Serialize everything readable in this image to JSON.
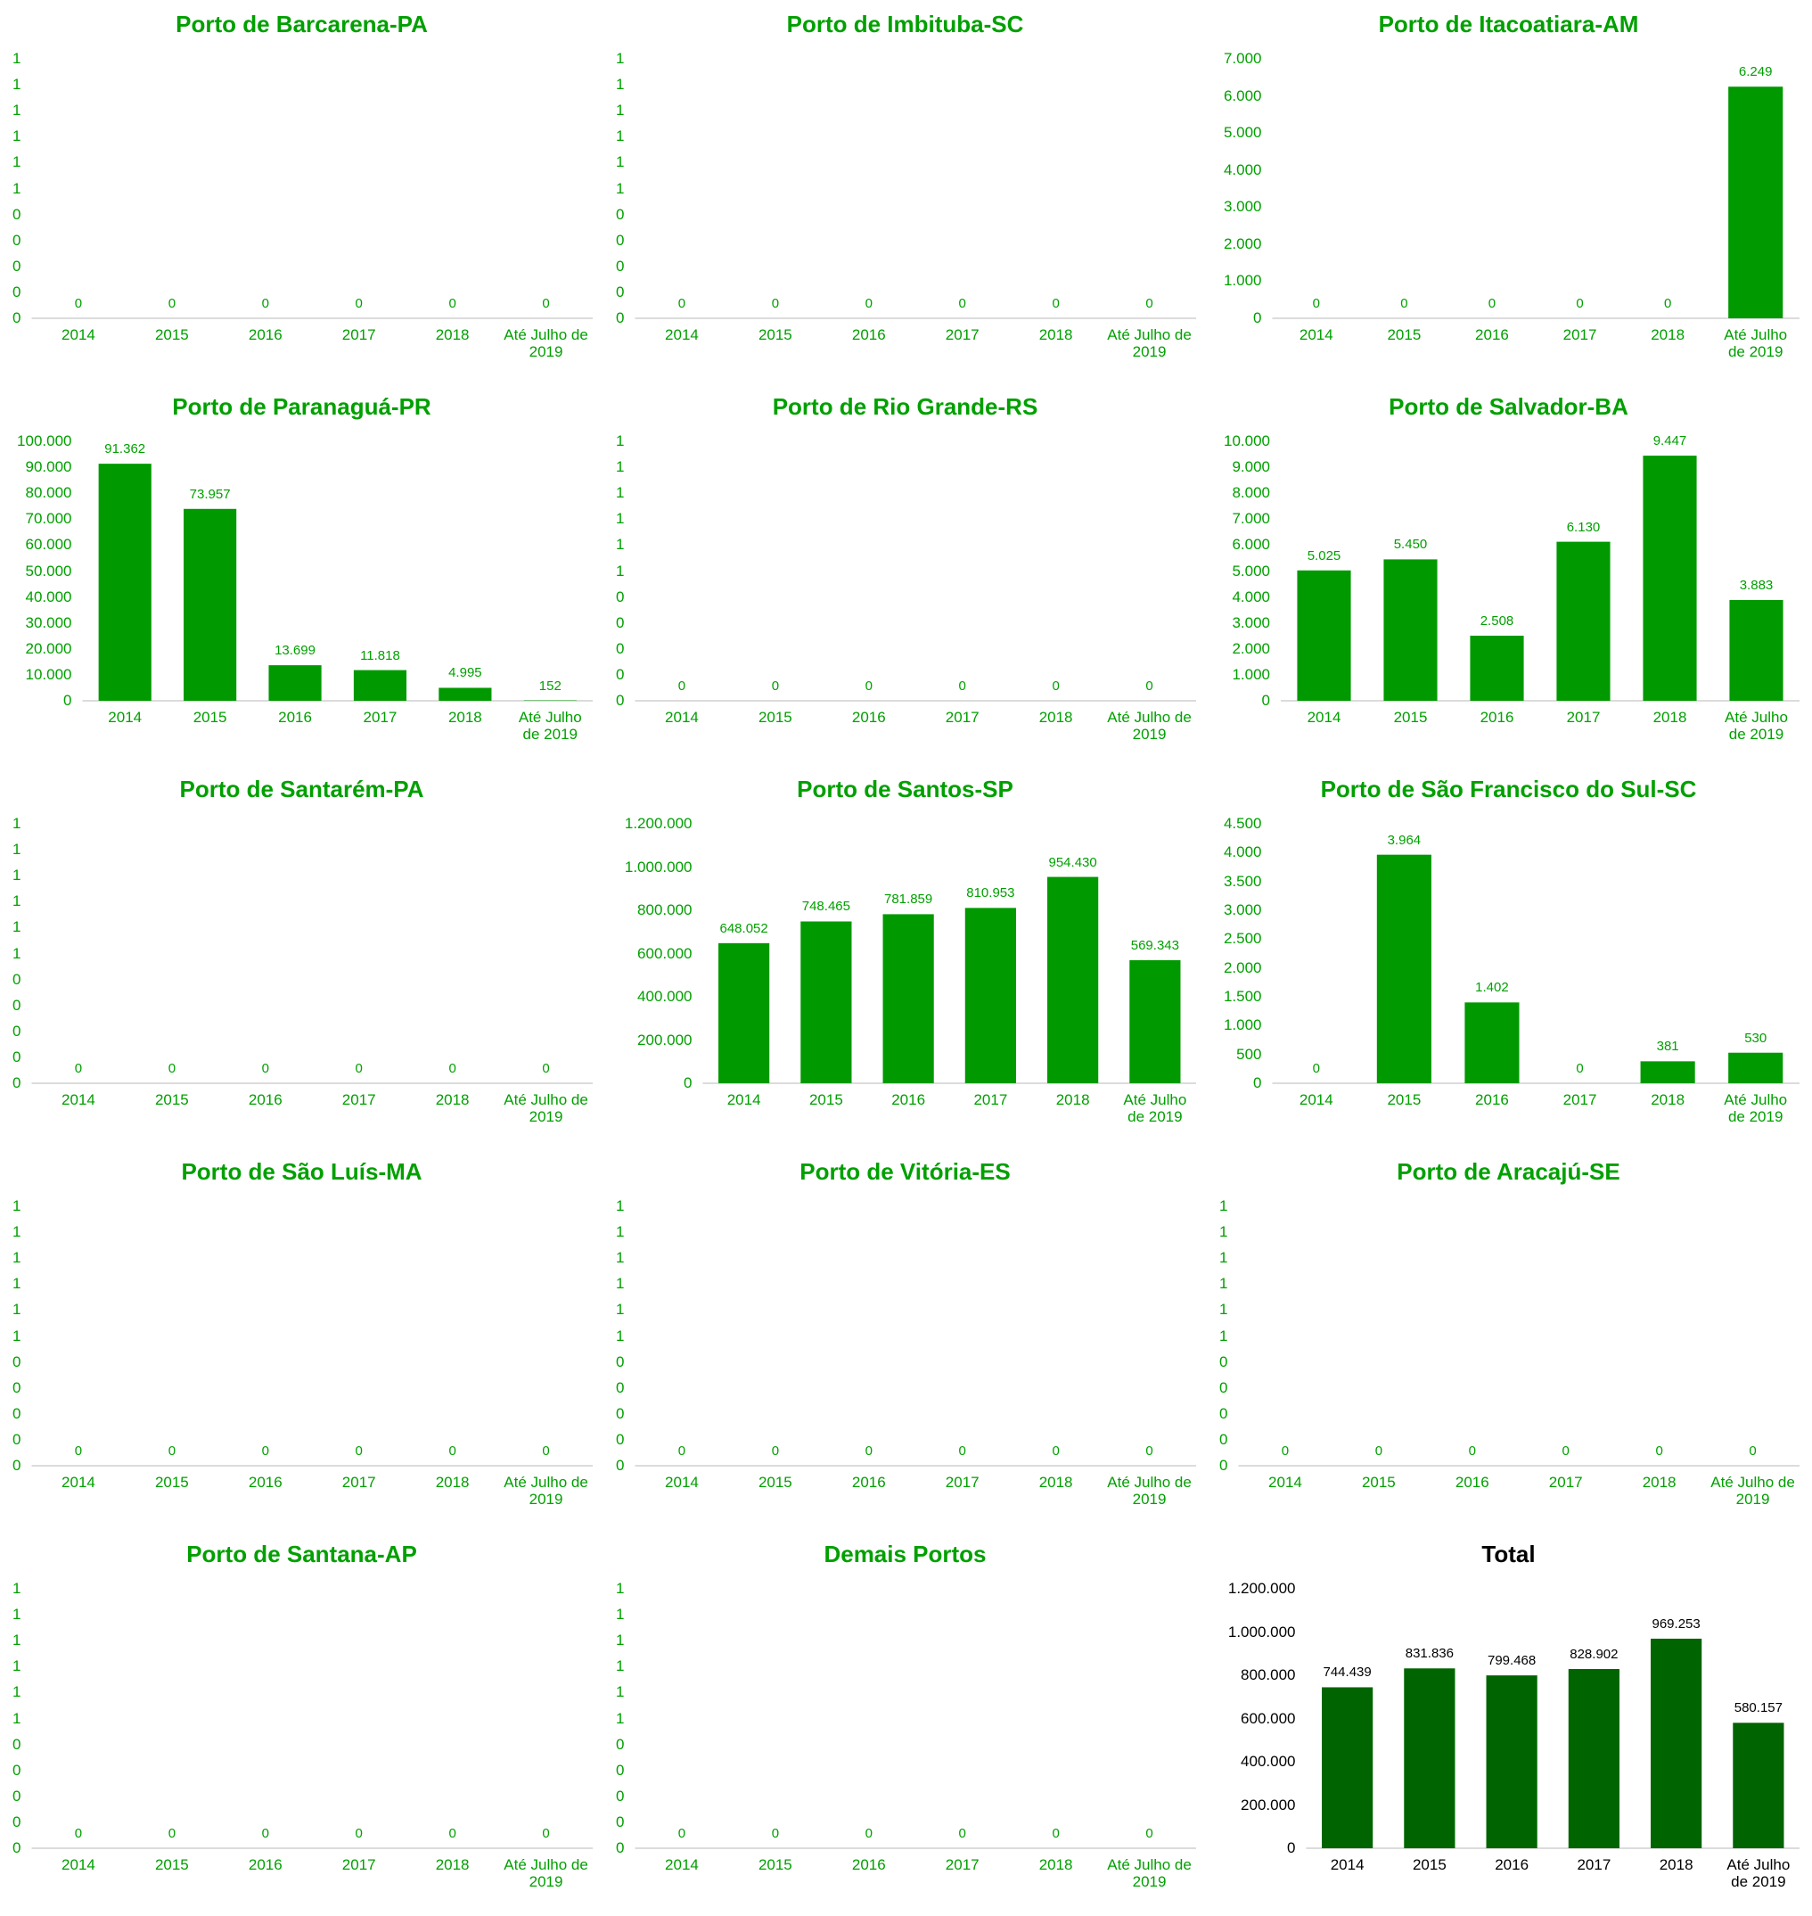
{
  "chart_data": [
    {
      "type": "bar",
      "title": "Porto de Barcarena-PA",
      "color": "#009900",
      "text_color": "#00a000",
      "categories": [
        "2014",
        "2015",
        "2016",
        "2017",
        "2018",
        "Até Julho de 2019"
      ],
      "values": [
        0,
        0,
        0,
        0,
        0,
        0
      ],
      "ylim": [
        0,
        1
      ],
      "yticks": [
        0,
        {
          "value": 0.1,
          "label": "0"
        },
        {
          "value": 0.2,
          "label": "0"
        },
        {
          "value": 0.3,
          "label": "0"
        },
        {
          "value": 0.4,
          "label": "0"
        },
        {
          "value": 0.5,
          "label": "1"
        },
        {
          "value": 0.6,
          "label": "1"
        },
        {
          "value": 0.7,
          "label": "1"
        },
        {
          "value": 0.8,
          "label": "1"
        },
        {
          "value": 0.9,
          "label": "1"
        },
        1
      ],
      "grid": false
    },
    {
      "type": "bar",
      "title": "Porto de Imbituba-SC",
      "color": "#009900",
      "text_color": "#00a000",
      "categories": [
        "2014",
        "2015",
        "2016",
        "2017",
        "2018",
        "Até Julho de 2019"
      ],
      "values": [
        0,
        0,
        0,
        0,
        0,
        0
      ],
      "ylim": [
        0,
        1
      ],
      "yticks": [
        0,
        {
          "value": 0.1,
          "label": "0"
        },
        {
          "value": 0.2,
          "label": "0"
        },
        {
          "value": 0.3,
          "label": "0"
        },
        {
          "value": 0.4,
          "label": "0"
        },
        {
          "value": 0.5,
          "label": "1"
        },
        {
          "value": 0.6,
          "label": "1"
        },
        {
          "value": 0.7,
          "label": "1"
        },
        {
          "value": 0.8,
          "label": "1"
        },
        {
          "value": 0.9,
          "label": "1"
        },
        1
      ],
      "grid": false
    },
    {
      "type": "bar",
      "title": "Porto de Itacoatiara-AM",
      "color": "#009900",
      "text_color": "#00a000",
      "categories": [
        "2014",
        "2015",
        "2016",
        "2017",
        "2018",
        "Até Julho de 2019"
      ],
      "values": [
        0,
        0,
        0,
        0,
        0,
        6249
      ],
      "value_labels": [
        "0",
        "0",
        "0",
        "0",
        "0",
        "6.249"
      ],
      "ylim": [
        0,
        7000
      ],
      "yticks": [
        0,
        {
          "value": 1000,
          "label": "1.000"
        },
        {
          "value": 2000,
          "label": "2.000"
        },
        {
          "value": 3000,
          "label": "3.000"
        },
        {
          "value": 4000,
          "label": "4.000"
        },
        {
          "value": 5000,
          "label": "5.000"
        },
        {
          "value": 6000,
          "label": "6.000"
        },
        {
          "value": 7000,
          "label": "7.000"
        }
      ],
      "grid": false
    },
    {
      "type": "bar",
      "title": "Porto de Paranaguá-PR",
      "color": "#009900",
      "text_color": "#00a000",
      "categories": [
        "2014",
        "2015",
        "2016",
        "2017",
        "2018",
        "Até Julho de 2019"
      ],
      "values": [
        91362,
        73957,
        13699,
        11818,
        4995,
        152
      ],
      "value_labels": [
        "91.362",
        "73.957",
        "13.699",
        "11.818",
        "4.995",
        "152"
      ],
      "ylim": [
        0,
        100000
      ],
      "yticks": [
        0,
        {
          "value": 10000,
          "label": "10.000"
        },
        {
          "value": 20000,
          "label": "20.000"
        },
        {
          "value": 30000,
          "label": "30.000"
        },
        {
          "value": 40000,
          "label": "40.000"
        },
        {
          "value": 50000,
          "label": "50.000"
        },
        {
          "value": 60000,
          "label": "60.000"
        },
        {
          "value": 70000,
          "label": "70.000"
        },
        {
          "value": 80000,
          "label": "80.000"
        },
        {
          "value": 90000,
          "label": "90.000"
        },
        {
          "value": 100000,
          "label": "100.000"
        }
      ],
      "grid": false
    },
    {
      "type": "bar",
      "title": "Porto de Rio Grande-RS",
      "color": "#009900",
      "text_color": "#00a000",
      "categories": [
        "2014",
        "2015",
        "2016",
        "2017",
        "2018",
        "Até Julho de 2019"
      ],
      "values": [
        0,
        0,
        0,
        0,
        0,
        0
      ],
      "ylim": [
        0,
        1
      ],
      "yticks": [
        0,
        {
          "value": 0.1,
          "label": "0"
        },
        {
          "value": 0.2,
          "label": "0"
        },
        {
          "value": 0.3,
          "label": "0"
        },
        {
          "value": 0.4,
          "label": "0"
        },
        {
          "value": 0.5,
          "label": "1"
        },
        {
          "value": 0.6,
          "label": "1"
        },
        {
          "value": 0.7,
          "label": "1"
        },
        {
          "value": 0.8,
          "label": "1"
        },
        {
          "value": 0.9,
          "label": "1"
        },
        1
      ],
      "grid": false
    },
    {
      "type": "bar",
      "title": "Porto de Salvador-BA",
      "color": "#009900",
      "text_color": "#00a000",
      "categories": [
        "2014",
        "2015",
        "2016",
        "2017",
        "2018",
        "Até Julho de 2019"
      ],
      "values": [
        5025,
        5450,
        2508,
        6130,
        9447,
        3883
      ],
      "value_labels": [
        "5.025",
        "5.450",
        "2.508",
        "6.130",
        "9.447",
        "3.883"
      ],
      "ylim": [
        0,
        10000
      ],
      "yticks": [
        0,
        {
          "value": 1000,
          "label": "1.000"
        },
        {
          "value": 2000,
          "label": "2.000"
        },
        {
          "value": 3000,
          "label": "3.000"
        },
        {
          "value": 4000,
          "label": "4.000"
        },
        {
          "value": 5000,
          "label": "5.000"
        },
        {
          "value": 6000,
          "label": "6.000"
        },
        {
          "value": 7000,
          "label": "7.000"
        },
        {
          "value": 8000,
          "label": "8.000"
        },
        {
          "value": 9000,
          "label": "9.000"
        },
        {
          "value": 10000,
          "label": "10.000"
        }
      ],
      "grid": false
    },
    {
      "type": "bar",
      "title": "Porto de Santarém-PA",
      "color": "#009900",
      "text_color": "#00a000",
      "categories": [
        "2014",
        "2015",
        "2016",
        "2017",
        "2018",
        "Até Julho de 2019"
      ],
      "values": [
        0,
        0,
        0,
        0,
        0,
        0
      ],
      "ylim": [
        0,
        1
      ],
      "yticks": [
        0,
        {
          "value": 0.1,
          "label": "0"
        },
        {
          "value": 0.2,
          "label": "0"
        },
        {
          "value": 0.3,
          "label": "0"
        },
        {
          "value": 0.4,
          "label": "0"
        },
        {
          "value": 0.5,
          "label": "1"
        },
        {
          "value": 0.6,
          "label": "1"
        },
        {
          "value": 0.7,
          "label": "1"
        },
        {
          "value": 0.8,
          "label": "1"
        },
        {
          "value": 0.9,
          "label": "1"
        },
        1
      ],
      "grid": false
    },
    {
      "type": "bar",
      "title": "Porto de Santos-SP",
      "color": "#009900",
      "text_color": "#00a000",
      "categories": [
        "2014",
        "2015",
        "2016",
        "2017",
        "2018",
        "Até Julho de 2019"
      ],
      "values": [
        648052,
        748465,
        781859,
        810953,
        954430,
        569343
      ],
      "value_labels": [
        "648.052",
        "748.465",
        "781.859",
        "810.953",
        "954.430",
        "569.343"
      ],
      "ylim": [
        0,
        1200000
      ],
      "yticks": [
        0,
        {
          "value": 200000,
          "label": "200.000"
        },
        {
          "value": 400000,
          "label": "400.000"
        },
        {
          "value": 600000,
          "label": "600.000"
        },
        {
          "value": 800000,
          "label": "800.000"
        },
        {
          "value": 1000000,
          "label": "1.000.000"
        },
        {
          "value": 1200000,
          "label": "1.200.000"
        }
      ],
      "grid": false
    },
    {
      "type": "bar",
      "title": "Porto de São Francisco do Sul-SC",
      "color": "#009900",
      "text_color": "#00a000",
      "categories": [
        "2014",
        "2015",
        "2016",
        "2017",
        "2018",
        "Até Julho de 2019"
      ],
      "values": [
        0,
        3964,
        1402,
        0,
        381,
        530
      ],
      "value_labels": [
        "0",
        "3.964",
        "1.402",
        "0",
        "381",
        "530"
      ],
      "ylim": [
        0,
        4500
      ],
      "yticks": [
        0,
        500,
        {
          "value": 1000,
          "label": "1.000"
        },
        {
          "value": 1500,
          "label": "1.500"
        },
        {
          "value": 2000,
          "label": "2.000"
        },
        {
          "value": 2500,
          "label": "2.500"
        },
        {
          "value": 3000,
          "label": "3.000"
        },
        {
          "value": 3500,
          "label": "3.500"
        },
        {
          "value": 4000,
          "label": "4.000"
        },
        {
          "value": 4500,
          "label": "4.500"
        }
      ],
      "grid": false
    },
    {
      "type": "bar",
      "title": "Porto de São Luís-MA",
      "color": "#009900",
      "text_color": "#00a000",
      "categories": [
        "2014",
        "2015",
        "2016",
        "2017",
        "2018",
        "Até Julho de 2019"
      ],
      "values": [
        0,
        0,
        0,
        0,
        0,
        0
      ],
      "ylim": [
        0,
        1
      ],
      "yticks": [
        0,
        {
          "value": 0.1,
          "label": "0"
        },
        {
          "value": 0.2,
          "label": "0"
        },
        {
          "value": 0.3,
          "label": "0"
        },
        {
          "value": 0.4,
          "label": "0"
        },
        {
          "value": 0.5,
          "label": "1"
        },
        {
          "value": 0.6,
          "label": "1"
        },
        {
          "value": 0.7,
          "label": "1"
        },
        {
          "value": 0.8,
          "label": "1"
        },
        {
          "value": 0.9,
          "label": "1"
        },
        1
      ],
      "grid": false
    },
    {
      "type": "bar",
      "title": "Porto de Vitória-ES",
      "color": "#009900",
      "text_color": "#00a000",
      "categories": [
        "2014",
        "2015",
        "2016",
        "2017",
        "2018",
        "Até Julho de 2019"
      ],
      "values": [
        0,
        0,
        0,
        0,
        0,
        0
      ],
      "ylim": [
        0,
        1
      ],
      "yticks": [
        0,
        {
          "value": 0.1,
          "label": "0"
        },
        {
          "value": 0.2,
          "label": "0"
        },
        {
          "value": 0.3,
          "label": "0"
        },
        {
          "value": 0.4,
          "label": "0"
        },
        {
          "value": 0.5,
          "label": "1"
        },
        {
          "value": 0.6,
          "label": "1"
        },
        {
          "value": 0.7,
          "label": "1"
        },
        {
          "value": 0.8,
          "label": "1"
        },
        {
          "value": 0.9,
          "label": "1"
        },
        1
      ],
      "grid": false
    },
    {
      "type": "bar",
      "title": "Porto de Aracajú-SE",
      "color": "#009900",
      "text_color": "#00a000",
      "categories": [
        "2014",
        "2015",
        "2016",
        "2017",
        "2018",
        "Até Julho de 2019"
      ],
      "values": [
        0,
        0,
        0,
        0,
        0,
        0
      ],
      "ylim": [
        0,
        1
      ],
      "yticks": [
        0,
        {
          "value": 0.1,
          "label": "0"
        },
        {
          "value": 0.2,
          "label": "0"
        },
        {
          "value": 0.3,
          "label": "0"
        },
        {
          "value": 0.4,
          "label": "0"
        },
        {
          "value": 0.5,
          "label": "1"
        },
        {
          "value": 0.6,
          "label": "1"
        },
        {
          "value": 0.7,
          "label": "1"
        },
        {
          "value": 0.8,
          "label": "1"
        },
        {
          "value": 0.9,
          "label": "1"
        },
        1
      ],
      "grid": false
    },
    {
      "type": "bar",
      "title": "Porto de Santana-AP",
      "color": "#009900",
      "text_color": "#00a000",
      "categories": [
        "2014",
        "2015",
        "2016",
        "2017",
        "2018",
        "Até Julho de 2019"
      ],
      "values": [
        0,
        0,
        0,
        0,
        0,
        0
      ],
      "ylim": [
        0,
        1
      ],
      "yticks": [
        0,
        {
          "value": 0.1,
          "label": "0"
        },
        {
          "value": 0.2,
          "label": "0"
        },
        {
          "value": 0.3,
          "label": "0"
        },
        {
          "value": 0.4,
          "label": "0"
        },
        {
          "value": 0.5,
          "label": "1"
        },
        {
          "value": 0.6,
          "label": "1"
        },
        {
          "value": 0.7,
          "label": "1"
        },
        {
          "value": 0.8,
          "label": "1"
        },
        {
          "value": 0.9,
          "label": "1"
        },
        1
      ],
      "grid": false
    },
    {
      "type": "bar",
      "title": "Demais Portos",
      "color": "#009900",
      "text_color": "#00a000",
      "categories": [
        "2014",
        "2015",
        "2016",
        "2017",
        "2018",
        "Até Julho de 2019"
      ],
      "values": [
        0,
        0,
        0,
        0,
        0,
        0
      ],
      "ylim": [
        0,
        1
      ],
      "yticks": [
        0,
        {
          "value": 0.1,
          "label": "0"
        },
        {
          "value": 0.2,
          "label": "0"
        },
        {
          "value": 0.3,
          "label": "0"
        },
        {
          "value": 0.4,
          "label": "0"
        },
        {
          "value": 0.5,
          "label": "1"
        },
        {
          "value": 0.6,
          "label": "1"
        },
        {
          "value": 0.7,
          "label": "1"
        },
        {
          "value": 0.8,
          "label": "1"
        },
        {
          "value": 0.9,
          "label": "1"
        },
        1
      ],
      "grid": false
    },
    {
      "type": "bar",
      "title": "Total",
      "color": "#006400",
      "text_color": "#000000",
      "categories": [
        "2014",
        "2015",
        "2016",
        "2017",
        "2018",
        "Até Julho de 2019"
      ],
      "values": [
        744439,
        831836,
        799468,
        828902,
        969253,
        580157
      ],
      "value_labels": [
        "744.439",
        "831.836",
        "799.468",
        "828.902",
        "969.253",
        "580.157"
      ],
      "ylim": [
        0,
        1200000
      ],
      "yticks": [
        0,
        {
          "value": 200000,
          "label": "200.000"
        },
        {
          "value": 400000,
          "label": "400.000"
        },
        {
          "value": 600000,
          "label": "600.000"
        },
        {
          "value": 800000,
          "label": "800.000"
        },
        {
          "value": 1000000,
          "label": "1.000.000"
        },
        {
          "value": 1200000,
          "label": "1.200.000"
        }
      ],
      "grid": false
    }
  ]
}
